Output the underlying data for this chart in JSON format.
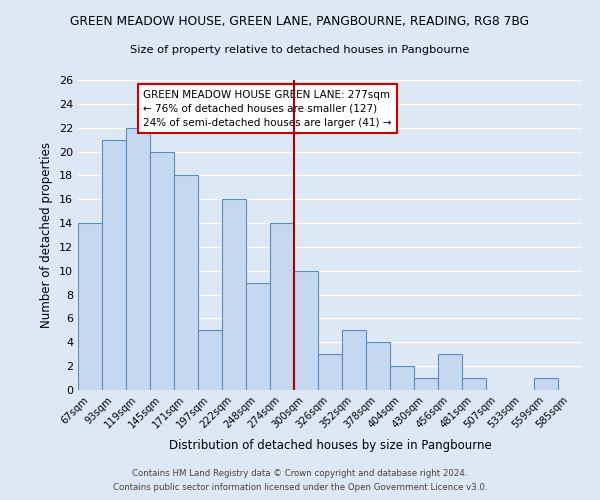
{
  "title_line1": "GREEN MEADOW HOUSE, GREEN LANE, PANGBOURNE, READING, RG8 7BG",
  "title_line2": "Size of property relative to detached houses in Pangbourne",
  "xlabel": "Distribution of detached houses by size in Pangbourne",
  "ylabel": "Number of detached properties",
  "categories": [
    "67sqm",
    "93sqm",
    "119sqm",
    "145sqm",
    "171sqm",
    "197sqm",
    "222sqm",
    "248sqm",
    "274sqm",
    "300sqm",
    "326sqm",
    "352sqm",
    "378sqm",
    "404sqm",
    "430sqm",
    "456sqm",
    "481sqm",
    "507sqm",
    "533sqm",
    "559sqm",
    "585sqm"
  ],
  "values": [
    14,
    21,
    22,
    20,
    18,
    5,
    16,
    9,
    14,
    10,
    3,
    5,
    4,
    2,
    1,
    3,
    1,
    0,
    0,
    1,
    0
  ],
  "bar_color": "#c5d8f0",
  "bar_edge_color": "#5a8cc0",
  "vline_x": 8.5,
  "vline_color": "#aa0000",
  "ylim": [
    0,
    26
  ],
  "yticks": [
    0,
    2,
    4,
    6,
    8,
    10,
    12,
    14,
    16,
    18,
    20,
    22,
    24,
    26
  ],
  "annotation_title": "GREEN MEADOW HOUSE GREEN LANE: 277sqm",
  "annotation_line2": "← 76% of detached houses are smaller (127)",
  "annotation_line3": "24% of semi-detached houses are larger (41) →",
  "annotation_box_color": "#ffffff",
  "annotation_edge_color": "#cc0000",
  "background_color": "#dce9f5",
  "grid_color": "#ffffff",
  "footer1": "Contains HM Land Registry data © Crown copyright and database right 2024.",
  "footer2": "Contains public sector information licensed under the Open Government Licence v3.0."
}
